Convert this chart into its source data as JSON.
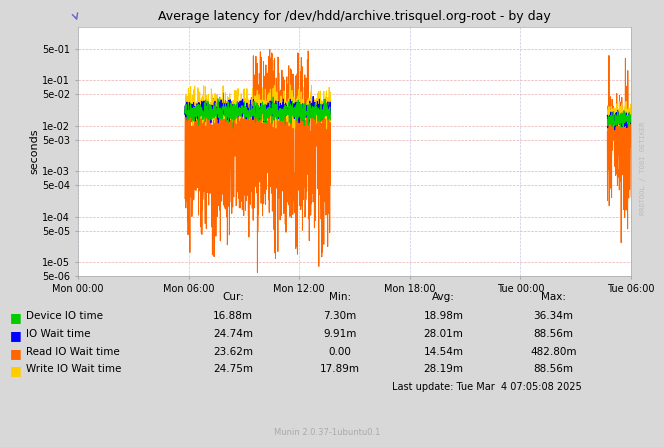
{
  "title": "Average latency for /dev/hdd/archive.trisquel.org-root - by day",
  "ylabel": "seconds",
  "background_color": "#d8d8d8",
  "plot_bg_color": "#ffffff",
  "grid_color_h": "#e8b0b0",
  "grid_color_v": "#c8c8e8",
  "yticks": [
    5e-06,
    1e-05,
    5e-05,
    0.0001,
    0.0005,
    0.001,
    0.005,
    0.01,
    0.05,
    0.1,
    0.5
  ],
  "ytick_labels": [
    "5e-06",
    "1e-05",
    "5e-05",
    "1e-04",
    "5e-04",
    "1e-03",
    "5e-03",
    "1e-02",
    "5e-02",
    "1e-01",
    "5e-01"
  ],
  "ylim_min": 5e-06,
  "ylim_max": 1.5,
  "xtick_labels": [
    "Mon 00:00",
    "Mon 06:00",
    "Mon 12:00",
    "Mon 18:00",
    "Tue 00:00",
    "Tue 06:00"
  ],
  "table_headers": [
    "Cur:",
    "Min:",
    "Avg:",
    "Max:"
  ],
  "table_rows": [
    {
      "label": "Device IO time",
      "color": "#00cc00",
      "cur": "16.88m",
      "min": "7.30m",
      "avg": "18.98m",
      "max": "36.34m"
    },
    {
      "label": "IO Wait time",
      "color": "#0000ff",
      "cur": "24.74m",
      "min": "9.91m",
      "avg": "28.01m",
      "max": "88.56m"
    },
    {
      "label": "Read IO Wait time",
      "color": "#ff6600",
      "cur": "23.62m",
      "min": "0.00",
      "avg": "14.54m",
      "max": "482.80m"
    },
    {
      "label": "Write IO Wait time",
      "color": "#ffcc00",
      "cur": "24.75m",
      "min": "17.89m",
      "avg": "28.19m",
      "max": "88.56m"
    }
  ],
  "last_update": "Last update: Tue Mar  4 07:05:08 2025",
  "munin_version": "Munin 2.0.37-1ubuntu0.1",
  "right_label": "RRDTOOL / TOBI OETIKER"
}
